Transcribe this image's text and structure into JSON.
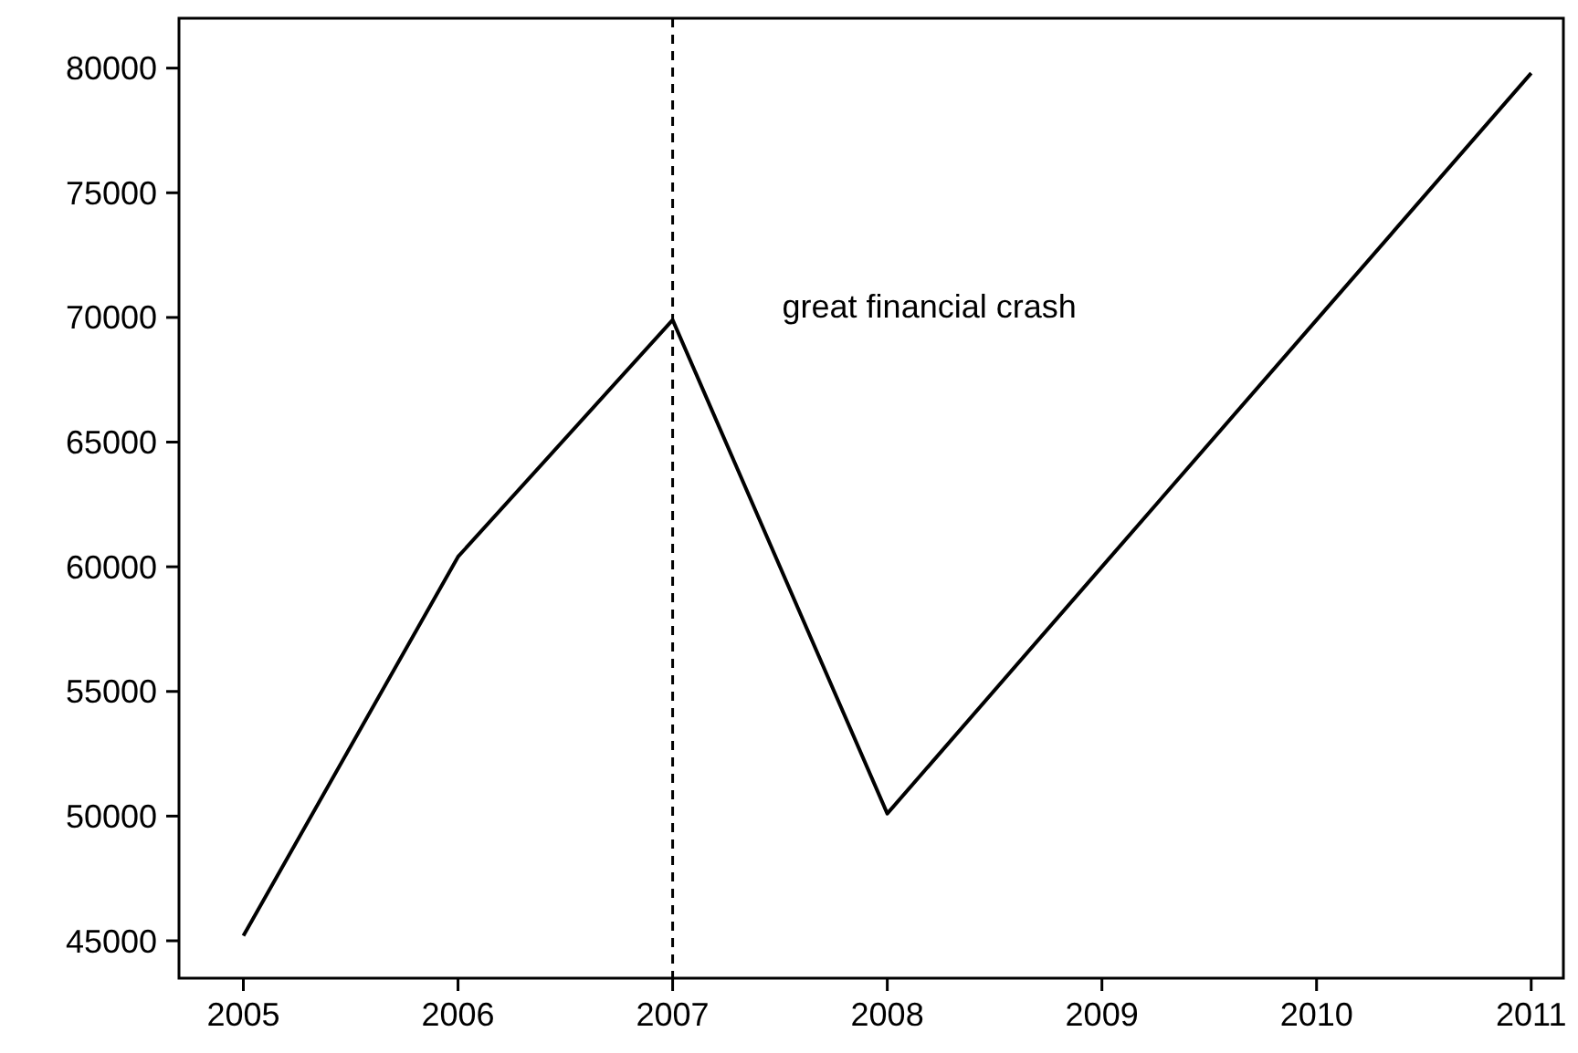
{
  "chart_data": {
    "type": "line",
    "x": [
      2005,
      2006,
      2007,
      2008,
      2009,
      2010,
      2011
    ],
    "series": [
      {
        "color": "#000000",
        "values": [
          45200,
          60400,
          69900,
          50100,
          60000,
          69900,
          79800
        ]
      }
    ],
    "xlim": [
      2004.7,
      2011.15
    ],
    "xticks": [
      2005,
      2006,
      2007,
      2008,
      2009,
      2010,
      2011
    ],
    "ylim": [
      43500,
      82000
    ],
    "yticks": [
      45000,
      50000,
      55000,
      60000,
      65000,
      70000,
      75000,
      80000
    ],
    "ref_lines": [
      {
        "axis": "x",
        "value": 2007,
        "label": "great financial crash",
        "color": "#000000",
        "line_style": "dashed"
      }
    ],
    "grid": false,
    "marker": "none",
    "line_style": "solid"
  }
}
